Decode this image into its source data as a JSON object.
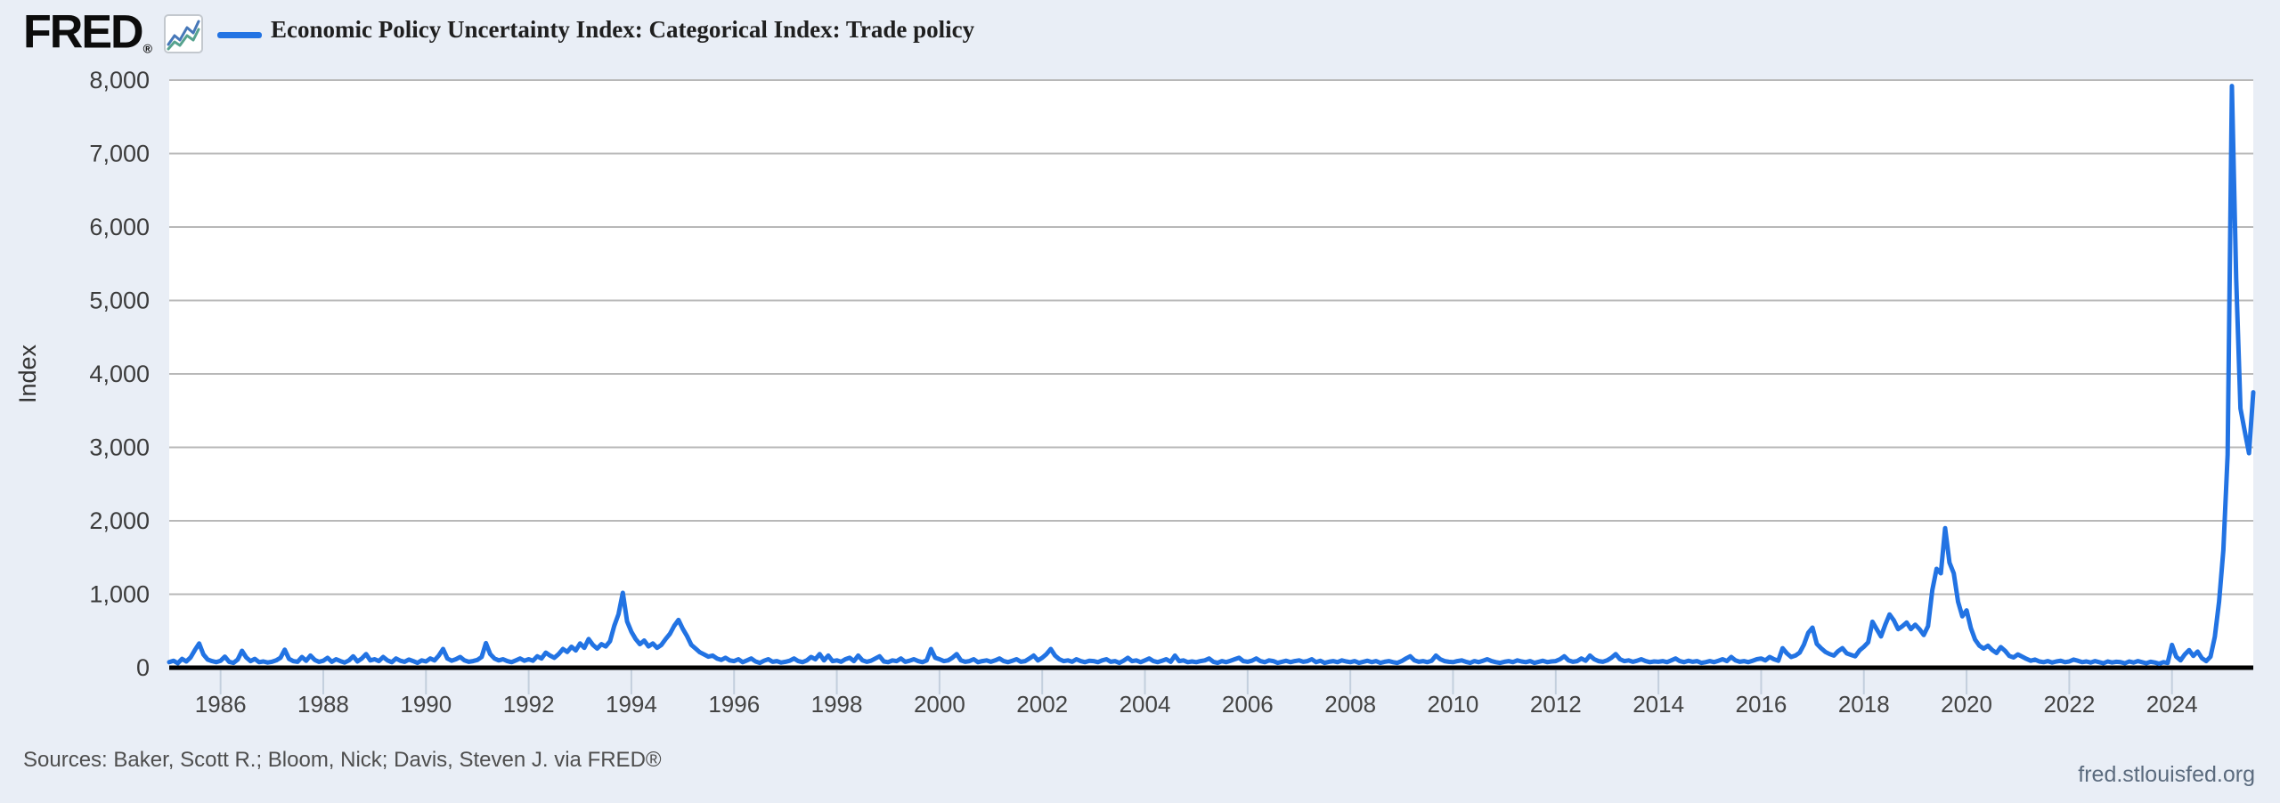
{
  "header": {
    "logo_text": "FRED",
    "logo_reg": "®",
    "legend_label": "Economic Policy Uncertainty Index: Categorical Index: Trade policy"
  },
  "footer": {
    "sources": "Sources: Baker, Scott R.; Bloom, Nick; Davis, Steven J. via FRED®",
    "watermark": "fred.stlouisfed.org"
  },
  "icons": {
    "logo_chart_icon": "line-chart-icon"
  },
  "chart_data": {
    "type": "line",
    "title": "Economic Policy Uncertainty Index: Categorical Index: Trade policy",
    "xlabel": "",
    "ylabel": "Index",
    "ylim": [
      0,
      8000
    ],
    "x_range_years": [
      1985.0,
      2025.58
    ],
    "grid": "horizontal-only",
    "legend_position": "top-left",
    "frequency": "monthly",
    "colors": {
      "line": "#2273e3",
      "grid": "#b8b8b8",
      "axis": "#000000",
      "tick": "#c3cfdd",
      "background": "#e9eef6",
      "plot_background": "#ffffff",
      "tick_label": "#3c3c3c"
    },
    "y_ticks": [
      {
        "value": 0,
        "label": "0"
      },
      {
        "value": 1000,
        "label": "1,000"
      },
      {
        "value": 2000,
        "label": "2,000"
      },
      {
        "value": 3000,
        "label": "3,000"
      },
      {
        "value": 4000,
        "label": "4,000"
      },
      {
        "value": 5000,
        "label": "5,000"
      },
      {
        "value": 6000,
        "label": "6,000"
      },
      {
        "value": 7000,
        "label": "7,000"
      },
      {
        "value": 8000,
        "label": "8,000"
      }
    ],
    "x_ticks": [
      1986,
      1988,
      1990,
      1992,
      1994,
      1996,
      1998,
      2000,
      2002,
      2004,
      2006,
      2008,
      2010,
      2012,
      2014,
      2016,
      2018,
      2020,
      2022,
      2024
    ],
    "series_name": "Economic Policy Uncertainty Index: Categorical Index: Trade policy",
    "notable_points": [
      {
        "year": "1993-11",
        "value": 1020,
        "note": "NAFTA-era peak just above 1,000"
      },
      {
        "year": "2019-08",
        "value": 1900,
        "note": "trade-war peak just under 2,000"
      },
      {
        "year": "2025-03",
        "value": 7920,
        "note": "maximum spike near 8,000"
      },
      {
        "year": "2025-08",
        "value": 3750,
        "note": "last observation, final uptick"
      }
    ],
    "series": [
      {
        "year": 1985,
        "monthly": [
          75,
          95,
          60,
          120,
          85,
          140,
          240,
          330,
          180,
          110,
          90,
          75
        ]
      },
      {
        "year": 1986,
        "monthly": [
          95,
          150,
          80,
          65,
          110,
          230,
          140,
          90,
          120,
          75,
          85,
          70
        ]
      },
      {
        "year": 1987,
        "monthly": [
          80,
          100,
          135,
          245,
          120,
          90,
          80,
          145,
          95,
          165,
          105,
          80
        ]
      },
      {
        "year": 1988,
        "monthly": [
          95,
          135,
          80,
          115,
          90,
          70,
          100,
          155,
          85,
          125,
          185,
          100
        ]
      },
      {
        "year": 1989,
        "monthly": [
          115,
          90,
          145,
          100,
          75,
          125,
          95,
          80,
          110,
          90,
          65,
          100
        ]
      },
      {
        "year": 1990,
        "monthly": [
          85,
          125,
          100,
          165,
          255,
          125,
          95,
          115,
          145,
          100,
          80,
          90
        ]
      },
      {
        "year": 1991,
        "monthly": [
          105,
          145,
          335,
          185,
          125,
          100,
          115,
          90,
          75,
          100,
          125,
          95
        ]
      },
      {
        "year": 1992,
        "monthly": [
          115,
          95,
          155,
          125,
          205,
          165,
          135,
          185,
          255,
          215,
          285,
          235
        ]
      },
      {
        "year": 1993,
        "monthly": [
          330,
          270,
          390,
          310,
          260,
          320,
          290,
          360,
          570,
          730,
          1020,
          630
        ]
      },
      {
        "year": 1994,
        "monthly": [
          490,
          390,
          320,
          370,
          290,
          330,
          270,
          310,
          390,
          460,
          570,
          650
        ]
      },
      {
        "year": 1995,
        "monthly": [
          530,
          430,
          310,
          260,
          210,
          180,
          150,
          165,
          125,
          105,
          135,
          100
        ]
      },
      {
        "year": 1996,
        "monthly": [
          90,
          115,
          75,
          100,
          125,
          85,
          65,
          95,
          115,
          80,
          90,
          70
        ]
      },
      {
        "year": 1997,
        "monthly": [
          80,
          95,
          125,
          90,
          75,
          100,
          145,
          115,
          185,
          100,
          165,
          90
        ]
      },
      {
        "year": 1998,
        "monthly": [
          100,
          80,
          115,
          135,
          90,
          165,
          100,
          80,
          95,
          125,
          155,
          85
        ]
      },
      {
        "year": 1999,
        "monthly": [
          75,
          100,
          90,
          125,
          80,
          95,
          115,
          90,
          75,
          100,
          255,
          135
        ]
      },
      {
        "year": 2000,
        "monthly": [
          115,
          90,
          100,
          135,
          185,
          100,
          80,
          90,
          115,
          75,
          90,
          100
        ]
      },
      {
        "year": 2001,
        "monthly": [
          80,
          100,
          125,
          90,
          75,
          95,
          115,
          80,
          90,
          125,
          165,
          100
        ]
      },
      {
        "year": 2002,
        "monthly": [
          135,
          185,
          255,
          165,
          115,
          90,
          100,
          80,
          115,
          90,
          75,
          95
        ]
      },
      {
        "year": 2003,
        "monthly": [
          90,
          75,
          100,
          115,
          80,
          90,
          65,
          95,
          135,
          90,
          100,
          75
        ]
      },
      {
        "year": 2004,
        "monthly": [
          100,
          125,
          90,
          75,
          95,
          115,
          80,
          165,
          90,
          100,
          75,
          85
        ]
      },
      {
        "year": 2005,
        "monthly": [
          75,
          90,
          100,
          125,
          80,
          65,
          90,
          75,
          95,
          115,
          135,
          90
        ]
      },
      {
        "year": 2006,
        "monthly": [
          80,
          95,
          125,
          90,
          75,
          100,
          90,
          65,
          80,
          95,
          75,
          90
        ]
      },
      {
        "year": 2007,
        "monthly": [
          100,
          80,
          90,
          115,
          75,
          95,
          65,
          80,
          90,
          75,
          100,
          85
        ]
      },
      {
        "year": 2008,
        "monthly": [
          75,
          90,
          65,
          80,
          95,
          75,
          90,
          65,
          80,
          90,
          75,
          65
        ]
      },
      {
        "year": 2009,
        "monthly": [
          90,
          125,
          155,
          100,
          80,
          90,
          75,
          95,
          165,
          115,
          90,
          80
        ]
      },
      {
        "year": 2010,
        "monthly": [
          75,
          90,
          100,
          80,
          65,
          90,
          75,
          95,
          115,
          90,
          75,
          65
        ]
      },
      {
        "year": 2011,
        "monthly": [
          80,
          90,
          75,
          100,
          85,
          75,
          90,
          65,
          80,
          95,
          75,
          85
        ]
      },
      {
        "year": 2012,
        "monthly": [
          90,
          115,
          155,
          100,
          80,
          90,
          125,
          95,
          165,
          115,
          90,
          80
        ]
      },
      {
        "year": 2013,
        "monthly": [
          100,
          135,
          185,
          115,
          90,
          100,
          80,
          95,
          115,
          90,
          75,
          85
        ]
      },
      {
        "year": 2014,
        "monthly": [
          80,
          90,
          75,
          100,
          125,
          90,
          75,
          95,
          80,
          90,
          65,
          75
        ]
      },
      {
        "year": 2015,
        "monthly": [
          90,
          75,
          95,
          115,
          90,
          145,
          100,
          80,
          90,
          75,
          95,
          115
        ]
      },
      {
        "year": 2016,
        "monthly": [
          125,
          100,
          145,
          115,
          95,
          265,
          195,
          145,
          165,
          205,
          315,
          475
        ]
      },
      {
        "year": 2017,
        "monthly": [
          545,
          325,
          265,
          215,
          185,
          165,
          225,
          265,
          195,
          175,
          155,
          235
        ]
      },
      {
        "year": 2018,
        "monthly": [
          285,
          345,
          625,
          525,
          425,
          585,
          725,
          645,
          525,
          565,
          615,
          525
        ]
      },
      {
        "year": 2019,
        "monthly": [
          585,
          525,
          445,
          565,
          1055,
          1345,
          1285,
          1900,
          1430,
          1285,
          900,
          700
        ]
      },
      {
        "year": 2020,
        "monthly": [
          780,
          540,
          380,
          300,
          260,
          300,
          240,
          200,
          280,
          230,
          160,
          140
        ]
      },
      {
        "year": 2021,
        "monthly": [
          180,
          150,
          120,
          95,
          110,
          85,
          75,
          90,
          70,
          85,
          95,
          75
        ]
      },
      {
        "year": 2022,
        "monthly": [
          85,
          110,
          95,
          75,
          85,
          70,
          90,
          75,
          60,
          85,
          70,
          80
        ]
      },
      {
        "year": 2023,
        "monthly": [
          75,
          60,
          85,
          70,
          90,
          75,
          60,
          80,
          70,
          55,
          75,
          65
        ]
      },
      {
        "year": 2024,
        "monthly": [
          310,
          150,
          100,
          180,
          240,
          160,
          220,
          130,
          90,
          150,
          420,
          900
        ]
      },
      {
        "year": 2025,
        "monthly": [
          1600,
          2900,
          7920,
          5300,
          3530,
          3220,
          2920,
          3750
        ]
      }
    ]
  }
}
